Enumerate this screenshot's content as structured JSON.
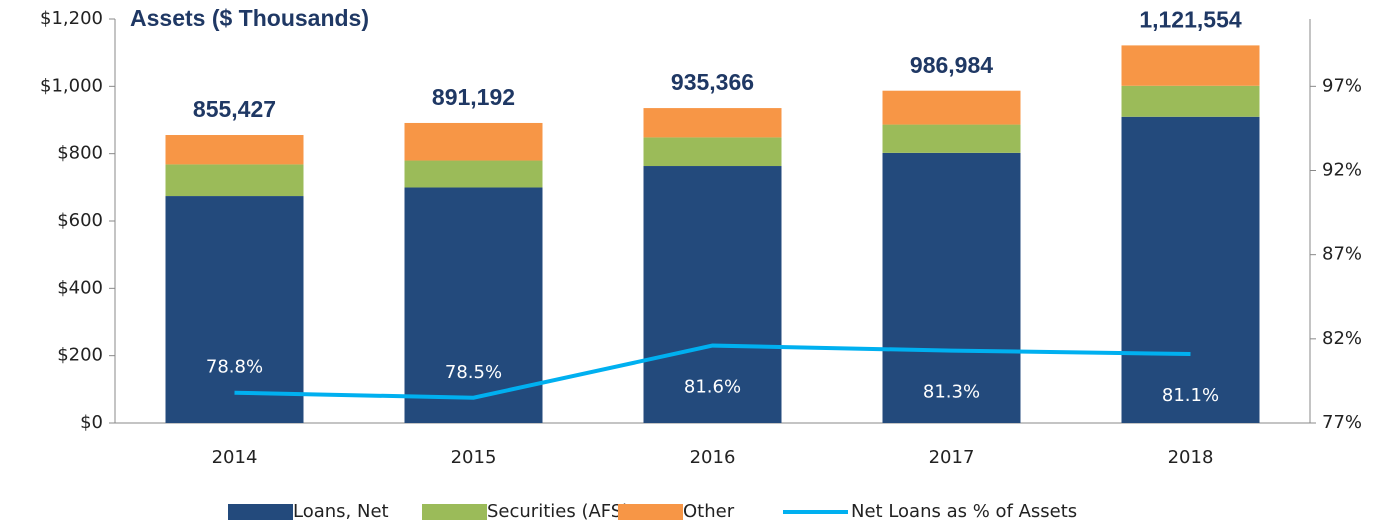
{
  "chart_data": {
    "type": "bar",
    "title": "Assets ($ Thousands)",
    "categories": [
      "2014",
      "2015",
      "2016",
      "2017",
      "2018"
    ],
    "series": [
      {
        "name": "Loans, Net",
        "color": "#234a7c",
        "values": [
          674.1,
          699.6,
          763.3,
          802.4,
          909.6
        ]
      },
      {
        "name": "Securities (AFS)",
        "color": "#9bbb59",
        "values": [
          94,
          80,
          85,
          84,
          92
        ]
      },
      {
        "name": "Other",
        "color": "#f79646",
        "values": [
          87.3,
          111.6,
          87.1,
          100.6,
          120
        ]
      },
      {
        "name": "Net Loans as % of Assets",
        "type": "line",
        "axis": "y2",
        "color": "#00b0f0",
        "values": [
          78.8,
          78.5,
          81.6,
          81.3,
          81.1
        ],
        "value_labels": [
          "78.8%",
          "78.5%",
          "81.6%",
          "81.3%",
          "81.1%"
        ]
      }
    ],
    "totals": [
      855.427,
      891.192,
      935.366,
      986.984,
      1121.554
    ],
    "total_labels": [
      "855,427",
      "891,192",
      "935,366",
      "986,984",
      "1,121,554"
    ],
    "ylim": [
      0,
      1200
    ],
    "yticks": [
      {
        "value": 0,
        "label": "$0"
      },
      {
        "value": 200,
        "label": "$200"
      },
      {
        "value": 400,
        "label": "$400"
      },
      {
        "value": 600,
        "label": "$600"
      },
      {
        "value": 800,
        "label": "$800"
      },
      {
        "value": 1000,
        "label": "$1,000"
      },
      {
        "value": 1200,
        "label": "$1,200"
      }
    ],
    "y2lim": [
      77,
      101
    ],
    "y2ticks": [
      {
        "value": 77,
        "label": "77%"
      },
      {
        "value": 82,
        "label": "82%"
      },
      {
        "value": 87,
        "label": "87%"
      },
      {
        "value": 92,
        "label": "92%"
      },
      {
        "value": 97,
        "label": "97%"
      }
    ],
    "legend": "bottom"
  }
}
